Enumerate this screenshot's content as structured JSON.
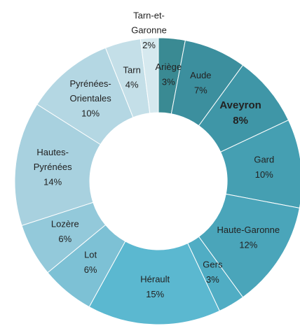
{
  "chart_data": {
    "type": "donut",
    "categories": [
      "Ariège",
      "Aude",
      "Aveyron",
      "Gard",
      "Haute-Garonne",
      "Gers",
      "Hérault",
      "Lot",
      "Lozère",
      "Hautes-Pyrénées",
      "Pyrénées-Orientales",
      "Tarn",
      "Tarn-et-Garonne"
    ],
    "values": [
      3,
      7,
      8,
      10,
      12,
      3,
      15,
      6,
      6,
      14,
      10,
      4,
      2
    ],
    "value_labels": [
      "3%",
      "7%",
      "8%",
      "10%",
      "12%",
      "3%",
      "15%",
      "6%",
      "6%",
      "14%",
      "10%",
      "4%",
      "2%"
    ],
    "colors": [
      "#3a8a93",
      "#3c8f9e",
      "#3f96a7",
      "#459fb2",
      "#4aa5ba",
      "#50adc4",
      "#5bb8d0",
      "#7dc1d5",
      "#93c9da",
      "#a8d1df",
      "#b4d7e3",
      "#c4dfe8",
      "#d6e9ef"
    ],
    "emphasis": "Aveyron"
  }
}
